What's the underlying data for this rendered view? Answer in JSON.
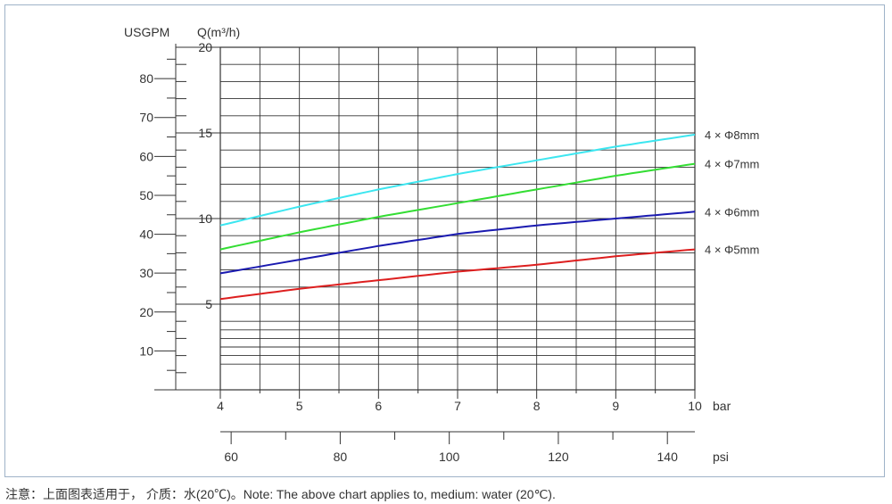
{
  "chart_data": {
    "type": "line",
    "y_axis_left_outer": {
      "label": "USGPM",
      "ticks": [
        10,
        20,
        30,
        40,
        50,
        60,
        70,
        80
      ]
    },
    "y_axis_left_inner": {
      "label": "Q(m³/h)",
      "ticks": [
        5,
        10,
        15,
        20
      ],
      "ylim": [
        0,
        20
      ]
    },
    "x_axis_bar": {
      "label": "bar",
      "ticks": [
        4,
        5,
        6,
        7,
        8,
        9,
        10
      ],
      "xlim": [
        4,
        10
      ]
    },
    "x_axis_psi": {
      "label": "psi",
      "ticks": [
        60,
        80,
        100,
        120,
        140
      ]
    },
    "grid": true,
    "series": [
      {
        "name": "4 × Φ8mm",
        "color": "#3ce6f0",
        "x": [
          4,
          5,
          6,
          7,
          8,
          9,
          10
        ],
        "y": [
          9.6,
          10.7,
          11.7,
          12.6,
          13.4,
          14.2,
          14.9
        ]
      },
      {
        "name": "4 × Φ7mm",
        "color": "#33dd33",
        "x": [
          4,
          5,
          6,
          7,
          8,
          9,
          10
        ],
        "y": [
          8.2,
          9.2,
          10.1,
          10.9,
          11.7,
          12.5,
          13.2
        ]
      },
      {
        "name": "4 × Φ6mm",
        "color": "#1a1ab0",
        "x": [
          4,
          5,
          6,
          7,
          8,
          9,
          10
        ],
        "y": [
          6.8,
          7.6,
          8.4,
          9.1,
          9.6,
          10.0,
          10.4
        ]
      },
      {
        "name": "4 × Φ5mm",
        "color": "#dd1f1f",
        "x": [
          4,
          5,
          6,
          7,
          8,
          9,
          10
        ],
        "y": [
          5.3,
          5.9,
          6.4,
          6.9,
          7.3,
          7.8,
          8.2
        ]
      }
    ]
  },
  "note": "注意：上面图表适用于， 介质：水(20℃)。Note: The above chart applies to, medium: water (20℃)."
}
